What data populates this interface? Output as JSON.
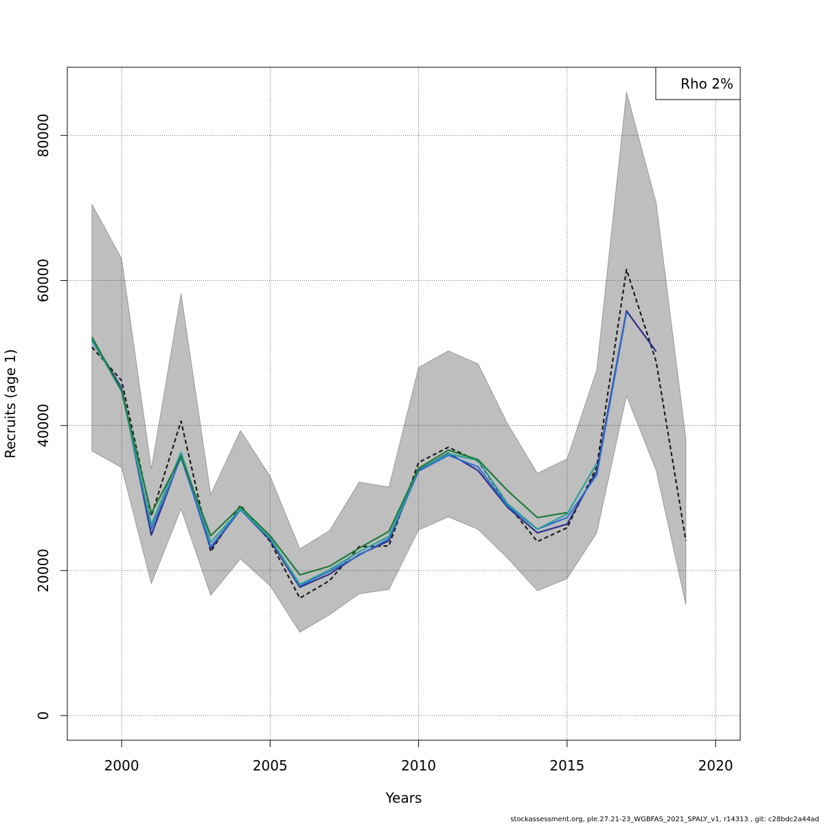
{
  "chart_data": {
    "type": "line",
    "title": "",
    "xlabel": "Years",
    "ylabel": "Recruits (age 1)",
    "xlim": [
      1998.17,
      2020.83
    ],
    "ylim": [
      -3400,
      89400
    ],
    "xticks": [
      2000,
      2005,
      2010,
      2015,
      2020
    ],
    "yticks": [
      0,
      20000,
      40000,
      60000,
      80000
    ],
    "xtick_labels": [
      "2000",
      "2005",
      "2010",
      "2015",
      "2020"
    ],
    "ytick_labels": [
      "0",
      "20000",
      "40000",
      "60000",
      "80000"
    ],
    "grid": true,
    "legend": {
      "placement": "top-right",
      "text": "Rho 2%"
    },
    "confidence_band": {
      "color": "#bebebe",
      "x": [
        1999,
        2000,
        2001,
        2002,
        2003,
        2004,
        2005,
        2006,
        2007,
        2008,
        2009,
        2010,
        2011,
        2012,
        2013,
        2014,
        2015,
        2016,
        2017,
        2018,
        2019
      ],
      "upper": [
        70500,
        63000,
        34000,
        58200,
        30500,
        39300,
        33000,
        23000,
        25500,
        32200,
        31500,
        48000,
        50300,
        48500,
        40200,
        33400,
        35400,
        47700,
        86000,
        70700,
        38200
      ],
      "lower": [
        36500,
        34200,
        18200,
        28500,
        16600,
        21600,
        17900,
        11500,
        13900,
        16800,
        17400,
        25600,
        27400,
        25700,
        21700,
        17200,
        18900,
        25200,
        44100,
        33800,
        15300
      ]
    },
    "series": [
      {
        "color": "#1a1a1a",
        "dash": "6,4",
        "x": [
          1999,
          2000,
          2001,
          2002,
          2003,
          2004,
          2005,
          2006,
          2007,
          2008,
          2009,
          2010,
          2011,
          2012,
          2013,
          2014,
          2015,
          2016,
          2017,
          2018,
          2019
        ],
        "values": [
          50800,
          46200,
          27500,
          40600,
          22600,
          29000,
          24000,
          16200,
          18600,
          23300,
          23400,
          34900,
          37000,
          35100,
          29100,
          24000,
          25900,
          34300,
          61500,
          48800,
          24100
        ]
      },
      {
        "color": "#2b2f8a",
        "dash": "",
        "x": [
          1999,
          2000,
          2001,
          2002,
          2003,
          2004,
          2005,
          2006,
          2007,
          2008,
          2009,
          2010,
          2011,
          2012,
          2013,
          2014,
          2015,
          2016,
          2017,
          2018
        ],
        "values": [
          51900,
          45200,
          24900,
          35800,
          23000,
          28400,
          24200,
          17700,
          19500,
          22200,
          24100,
          33900,
          36200,
          33800,
          28700,
          25200,
          26400,
          33700,
          55800,
          50200
        ]
      },
      {
        "color": "#2f6fd0",
        "dash": "",
        "x": [
          1999,
          2000,
          2001,
          2002,
          2003,
          2004,
          2005,
          2006,
          2007,
          2008,
          2009,
          2010,
          2011,
          2012,
          2013,
          2014,
          2015,
          2016,
          2017
        ],
        "values": [
          51700,
          45000,
          25700,
          35600,
          23300,
          28400,
          24400,
          17900,
          19900,
          22100,
          24400,
          33700,
          35900,
          34300,
          28900,
          25700,
          27300,
          33200,
          55600
        ]
      },
      {
        "color": "#2aa198",
        "dash": "",
        "x": [
          1999,
          2000,
          2001,
          2002,
          2003,
          2004,
          2005,
          2006,
          2007,
          2008,
          2009,
          2010,
          2011,
          2012,
          2013,
          2014,
          2015,
          2016
        ],
        "values": [
          51900,
          44700,
          26300,
          36300,
          23900,
          28500,
          24500,
          18100,
          20100,
          22600,
          24700,
          34000,
          36100,
          35200,
          29200,
          25700,
          27800,
          34800
        ]
      },
      {
        "color": "#1e7a3a",
        "dash": "",
        "x": [
          1999,
          2000,
          2001,
          2002,
          2003,
          2004,
          2005,
          2006,
          2007,
          2008,
          2009,
          2010,
          2011,
          2012,
          2013,
          2014,
          2015
        ],
        "values": [
          52200,
          44800,
          27900,
          35700,
          24800,
          28800,
          24800,
          19400,
          20600,
          23100,
          25400,
          34100,
          36600,
          35300,
          31000,
          27300,
          28000
        ]
      }
    ]
  },
  "footer": {
    "text": "stockassessment.org, ple.27.21-23_WGBFAS_2021_SPALY_v1, r14313 , git: c28bdc2a44ad"
  }
}
